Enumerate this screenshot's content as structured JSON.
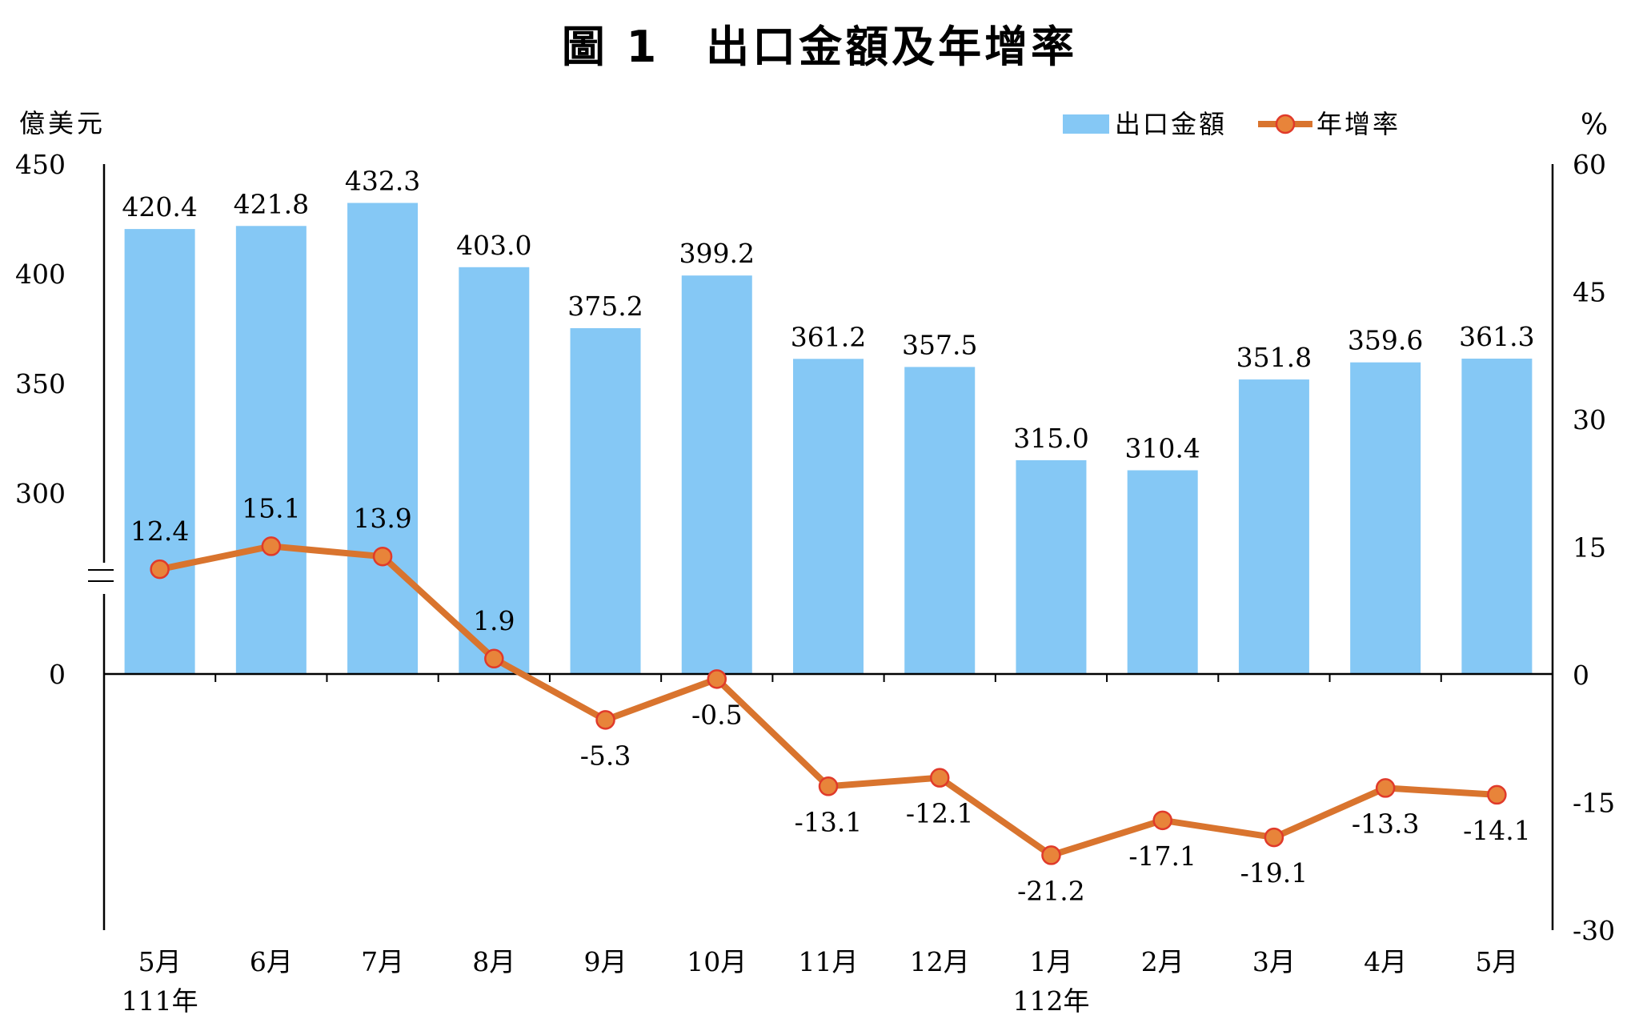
{
  "title": "圖 1　出口金額及年增率",
  "chart_data": {
    "type": "bar+line",
    "title": "圖 1　出口金額及年增率",
    "ylabel_left": "億美元",
    "ylabel_right": "%",
    "categories": [
      "5月",
      "6月",
      "7月",
      "8月",
      "9月",
      "10月",
      "11月",
      "12月",
      "1月",
      "2月",
      "3月",
      "4月",
      "5月"
    ],
    "year_labels": [
      {
        "category_index": 0,
        "label": "111年"
      },
      {
        "category_index": 8,
        "label": "112年"
      }
    ],
    "left_axis": {
      "ticks": [
        "0",
        "300",
        "350",
        "400",
        "450"
      ],
      "tick_values": [
        0,
        300,
        350,
        400,
        450
      ],
      "axis_break": true
    },
    "right_axis": {
      "ticks": [
        "-30",
        "-15",
        "0",
        "15",
        "30",
        "45",
        "60"
      ],
      "ylim": [
        -30,
        60
      ]
    },
    "series": [
      {
        "name": "出口金額",
        "type": "bar",
        "axis": "left",
        "color": "#85C8F5",
        "values": [
          420.4,
          421.8,
          432.3,
          403.0,
          375.2,
          399.2,
          361.2,
          357.5,
          315.0,
          310.4,
          351.8,
          359.6,
          361.3
        ],
        "labels": [
          "420.4",
          "421.8",
          "432.3",
          "403.0",
          "375.2",
          "399.2",
          "361.2",
          "357.5",
          "315.0",
          "310.4",
          "351.8",
          "359.6",
          "361.3"
        ]
      },
      {
        "name": "年增率",
        "type": "line",
        "axis": "right",
        "color": "#D9742E",
        "marker_color": "#E8843A",
        "marker_edge": "#E03A2A",
        "values": [
          12.4,
          15.1,
          13.9,
          1.9,
          -5.3,
          -0.5,
          -13.1,
          -12.1,
          -21.2,
          -17.1,
          -19.1,
          -13.3,
          -14.1
        ],
        "labels": [
          "12.4",
          "15.1",
          "13.9",
          "1.9",
          "-5.3",
          "-0.5",
          "-13.1",
          "-12.1",
          "-21.2",
          "-17.1",
          "-19.1",
          "-13.3",
          "-14.1"
        ]
      }
    ],
    "legend_position": "top-right"
  }
}
